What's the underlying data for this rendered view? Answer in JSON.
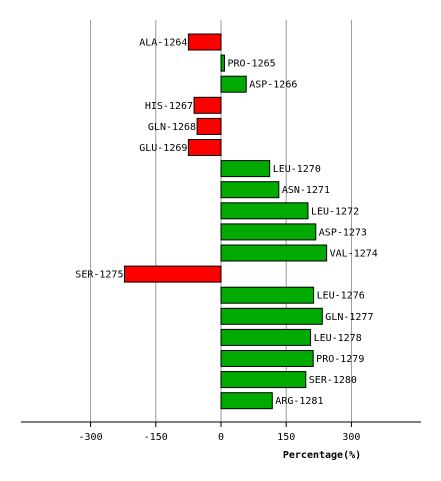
{
  "chart_data": {
    "type": "bar",
    "orientation": "horizontal",
    "xlabel": "Percentage(%)",
    "xlim": [
      -460,
      460
    ],
    "xticks": [
      -300,
      -150,
      0,
      150,
      300
    ],
    "xtick_labels": [
      "-300",
      "-150",
      "0",
      "150",
      "300"
    ],
    "grid": "vertical",
    "positive_color": "#00aa00",
    "negative_color": "#ff0000",
    "categories": [
      "ALA-1264",
      "PRO-1265",
      "ASP-1266",
      "HIS-1267",
      "GLN-1268",
      "GLU-1269",
      "LEU-1270",
      "ASN-1271",
      "LEU-1272",
      "ASP-1273",
      "VAL-1274",
      "SER-1275",
      "LEU-1276",
      "GLN-1277",
      "LEU-1278",
      "PRO-1279",
      "SER-1280",
      "ARG-1281"
    ],
    "values": [
      -75,
      8,
      58,
      -62,
      -55,
      -75,
      112,
      133,
      200,
      218,
      243,
      -222,
      213,
      233,
      206,
      212,
      195,
      118
    ]
  }
}
